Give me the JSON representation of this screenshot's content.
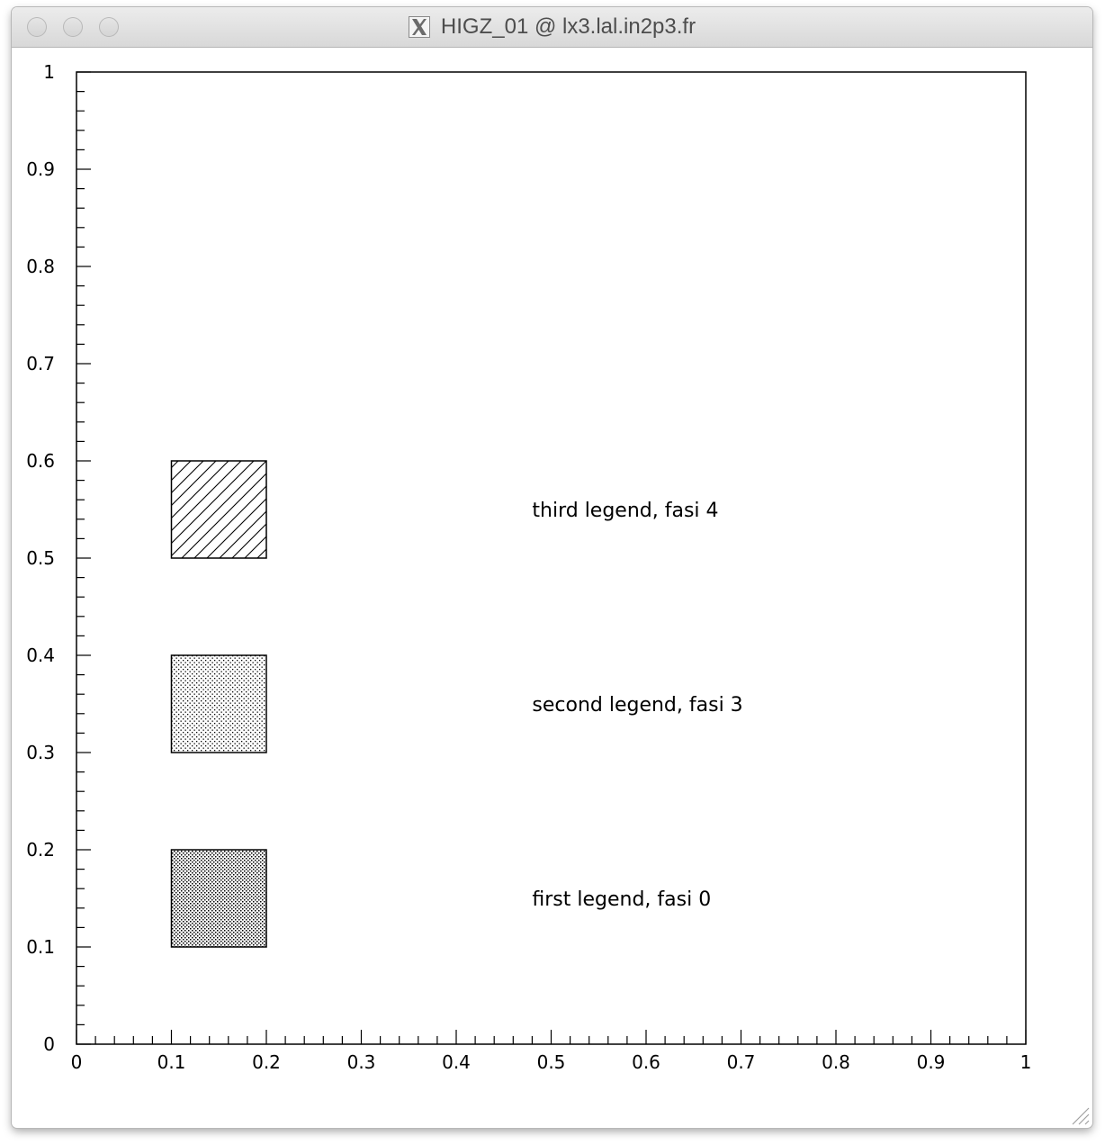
{
  "window": {
    "title": "HIGZ_01 @ lx3.lal.in2p3.fr",
    "title_icon": "x11-icon",
    "buttons": [
      "close-button",
      "minimize-button",
      "zoom-button"
    ]
  },
  "chart_data": {
    "type": "other",
    "xlim": [
      0,
      1
    ],
    "ylim": [
      0,
      1
    ],
    "x_ticks": [
      "0",
      "0.1",
      "0.2",
      "0.3",
      "0.4",
      "0.5",
      "0.6",
      "0.7",
      "0.8",
      "0.9",
      "1"
    ],
    "y_ticks": [
      "0",
      "0.1",
      "0.2",
      "0.3",
      "0.4",
      "0.5",
      "0.6",
      "0.7",
      "0.8",
      "0.9",
      "1"
    ],
    "grid": false,
    "boxes": [
      {
        "x0": 0.1,
        "x1": 0.2,
        "y0": 0.1,
        "y1": 0.2,
        "fill_style": "dense-dots"
      },
      {
        "x0": 0.1,
        "x1": 0.2,
        "y0": 0.3,
        "y1": 0.4,
        "fill_style": "light-dots"
      },
      {
        "x0": 0.1,
        "x1": 0.2,
        "y0": 0.5,
        "y1": 0.6,
        "fill_style": "diagonal-hatch"
      }
    ],
    "legend_labels": [
      {
        "text": "first legend, fasi 0",
        "x": 0.48,
        "y": 0.15
      },
      {
        "text": "second legend, fasi 3",
        "x": 0.48,
        "y": 0.35
      },
      {
        "text": "third legend, fasi 4",
        "x": 0.48,
        "y": 0.55
      }
    ]
  }
}
